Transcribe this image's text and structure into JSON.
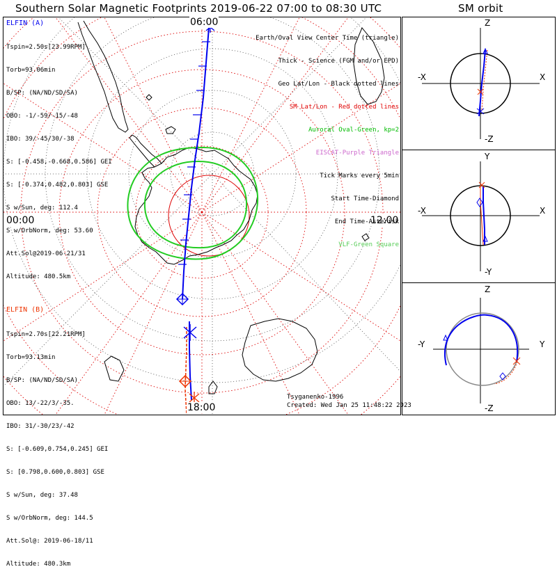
{
  "title": "Southern Solar Magnetic Footprints 2019-06-22 07:00 to 08:30 UTC",
  "orbit_title": "SM orbit",
  "clock_labels": {
    "top": "06:00",
    "left": "00:00",
    "right": "12:00",
    "bottom": "18:00"
  },
  "sat_a": {
    "name": "ELFIN (A)",
    "lines": [
      "Tspin=2.50s[23.99RPM]",
      "Torb=93.06min",
      "B/SP: (NA/ND/SD/SA)",
      "OBO: -1/-59/-15/-48",
      "IBO: 39/-45/30/-38",
      "S: [-0.458,-0.668,0.586] GEI",
      "S: [-0.374,0.482,0.803] GSE",
      "S w/Sun, deg: 112.4",
      "S w/OrbNorm, deg: 53.60",
      "Att.Sol@2019-06-21/31",
      "Altitude: 480.5km"
    ]
  },
  "sat_b": {
    "name": "ELFIN (B)",
    "lines": [
      "Tspin=2.70s[22.21RPM]",
      "Torb=93.13min",
      "B/SP: (NA/ND/SD/SA)",
      "OBO: 13/-22/3/-35.",
      "IBO: 31/-30/23/-42",
      "S: [-0.609,0.754,0.245] GEI",
      "S: [0.798,0.600,0.803] GSE",
      "S w/Sun, deg: 37.48",
      "S w/OrbNorm, deg: 144.5",
      "Att.Sol@: 2019-06-18/11",
      "Altitude: 480.3km"
    ]
  },
  "legend": [
    {
      "text": "Earth/Oval View Center Time (triangle)",
      "color": "#000000"
    },
    {
      "text": "Thick - Science (FGM and/or EPD)",
      "color": "#000000"
    },
    {
      "text": "Geo Lat/Lon - Black dotted lines",
      "color": "#000000"
    },
    {
      "text": "SM Lat/Lon - Red dotted lines",
      "color": "#e00000"
    },
    {
      "text": "Auroral Oval-Green, kp=2",
      "color": "#00bb00"
    },
    {
      "text": "EISCAT-Purple Triangle",
      "color": "#cc66cc"
    },
    {
      "text": "Tick Marks every 5min",
      "color": "#000000"
    },
    {
      "text": "Start Time-Diamond",
      "color": "#000000"
    },
    {
      "text": "End Time-Asterisk",
      "color": "#000000"
    },
    {
      "text": "VLF-Green Square",
      "color": "#55cc55"
    }
  ],
  "credits": {
    "author": "Tsyganenko-1996",
    "created": "Created: Wed Jan 25 11:48:22 2023"
  },
  "orbit_panels": [
    {
      "top": "Z",
      "bottom": "-Z",
      "left": "-X",
      "right": "X"
    },
    {
      "top": "Y",
      "bottom": "-Y",
      "left": "-X",
      "right": "X"
    },
    {
      "top": "Z",
      "bottom": "-Z",
      "left": "-Y",
      "right": "Y"
    }
  ],
  "colors": {
    "sat_a": "#0000ee",
    "sat_b": "#ee3300",
    "sm_grid": "#dd0000",
    "aurora": "#22cc22",
    "coast": "#000000",
    "geo_grid": "#555555"
  }
}
